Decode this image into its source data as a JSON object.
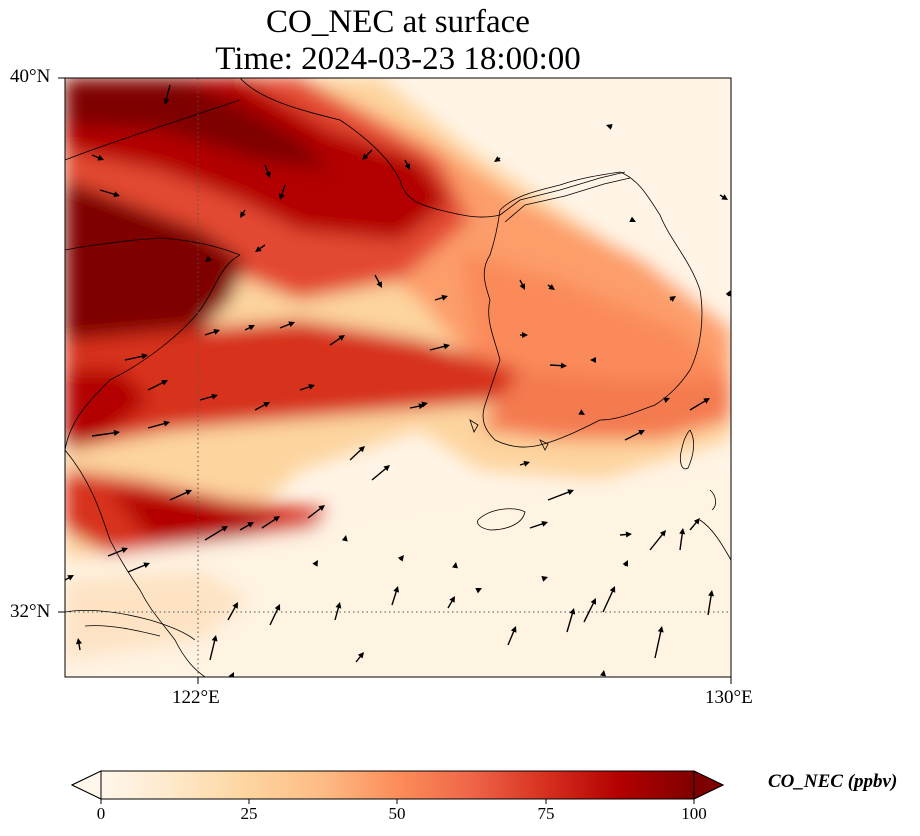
{
  "title_line1": "CO_NEC at surface",
  "title_line2": "Time: 2024-03-23 18:00:00",
  "axes": {
    "lat_labels": [
      "40°N",
      "32°N"
    ],
    "lon_labels": [
      "122°E",
      "130°E"
    ],
    "lat_range": [
      31,
      40
    ],
    "lon_range": [
      120,
      130
    ]
  },
  "colorbar": {
    "label": "CO_NEC (ppbv)",
    "ticks": [
      "0",
      "25",
      "50",
      "75",
      "100"
    ],
    "range": [
      0,
      100
    ],
    "colormap": "OrRd",
    "stops": [
      "#fff7ec",
      "#fee8c8",
      "#fdd49e",
      "#fdbb84",
      "#fc8d59",
      "#ef6548",
      "#d7301f",
      "#b30000",
      "#7f0000"
    ]
  },
  "colors": {
    "coastline": "#000000",
    "gridline": "#555555",
    "wind_arrow": "#000000"
  }
}
